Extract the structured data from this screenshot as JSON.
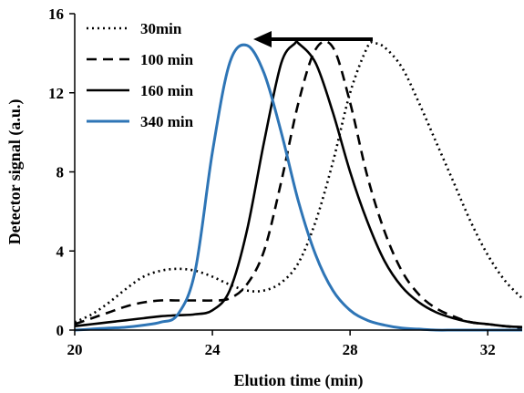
{
  "chart_data": {
    "type": "line",
    "xlabel": "Elution time (min)",
    "ylabel": "Detector signal (a.u.)",
    "xlim": [
      20,
      33
    ],
    "ylim": [
      0,
      16
    ],
    "x_ticks": [
      20,
      24,
      28,
      32
    ],
    "y_ticks": [
      0,
      4,
      8,
      12,
      16
    ],
    "grid": false,
    "legend_position": "top-left",
    "annotations": [
      {
        "type": "arrow",
        "direction": "left",
        "description": "shift toward shorter elution time"
      }
    ],
    "series": [
      {
        "name": "30min",
        "style": "dotted",
        "color": "#000000",
        "x": [
          20,
          20.5,
          21,
          21.5,
          22,
          22.5,
          23,
          23.5,
          24,
          24.5,
          25,
          25.5,
          26,
          26.5,
          27,
          27.5,
          28,
          28.5,
          28.7,
          29,
          29.5,
          30,
          30.5,
          31,
          31.5,
          32,
          32.5,
          33
        ],
        "y": [
          0.4,
          0.8,
          1.4,
          2.1,
          2.7,
          3.0,
          3.1,
          3.0,
          2.7,
          2.3,
          2.0,
          2.0,
          2.4,
          3.4,
          5.5,
          8.5,
          12.0,
          14.3,
          14.5,
          14.3,
          13.3,
          11.5,
          9.5,
          7.5,
          5.5,
          3.8,
          2.5,
          1.6
        ]
      },
      {
        "name": "100 min",
        "style": "dashed",
        "color": "#000000",
        "x": [
          20,
          20.5,
          21,
          21.5,
          22,
          22.5,
          23,
          23.5,
          24,
          24.5,
          25,
          25.5,
          26,
          26.5,
          27,
          27.5,
          28,
          28.5,
          29,
          29.5,
          30,
          30.5,
          31,
          31.5,
          32,
          32.5,
          33
        ],
        "y": [
          0.3,
          0.6,
          0.9,
          1.2,
          1.4,
          1.5,
          1.5,
          1.5,
          1.5,
          1.6,
          2.3,
          4.0,
          7.5,
          11.5,
          14.2,
          14.3,
          11.5,
          7.8,
          5.0,
          3.0,
          1.8,
          1.1,
          0.7,
          0.4,
          0.3,
          0.2,
          0.1
        ]
      },
      {
        "name": "160 min",
        "style": "solid",
        "color": "#000000",
        "x": [
          20,
          20.5,
          21,
          21.5,
          22,
          22.5,
          23,
          23.5,
          24,
          24.5,
          25,
          25.5,
          26,
          26.4,
          26.5,
          27,
          27.5,
          28,
          28.5,
          29,
          29.5,
          30,
          30.5,
          31,
          31.5,
          32,
          32.5,
          33
        ],
        "y": [
          0.2,
          0.3,
          0.4,
          0.5,
          0.6,
          0.7,
          0.75,
          0.8,
          1.0,
          2.0,
          5.0,
          9.5,
          13.5,
          14.5,
          14.5,
          13.5,
          11.0,
          8.0,
          5.5,
          3.5,
          2.2,
          1.4,
          0.9,
          0.6,
          0.4,
          0.3,
          0.2,
          0.15
        ]
      },
      {
        "name": "340 min",
        "style": "solid",
        "color": "#2e75b6",
        "x": [
          20,
          20.5,
          21,
          21.5,
          22,
          22.5,
          23,
          23.5,
          24,
          24.5,
          25,
          25.5,
          26,
          26.5,
          27,
          27.5,
          28,
          28.5,
          29,
          29.5,
          30,
          30.5,
          31,
          31.5,
          32,
          32.5,
          33
        ],
        "y": [
          0.0,
          0.05,
          0.1,
          0.15,
          0.25,
          0.4,
          0.8,
          3.0,
          9.0,
          13.5,
          14.4,
          13.0,
          10.0,
          6.5,
          3.8,
          2.0,
          1.0,
          0.5,
          0.25,
          0.1,
          0.05,
          0.0,
          0.0,
          0.0,
          0.0,
          0.0,
          0.0
        ]
      }
    ]
  }
}
